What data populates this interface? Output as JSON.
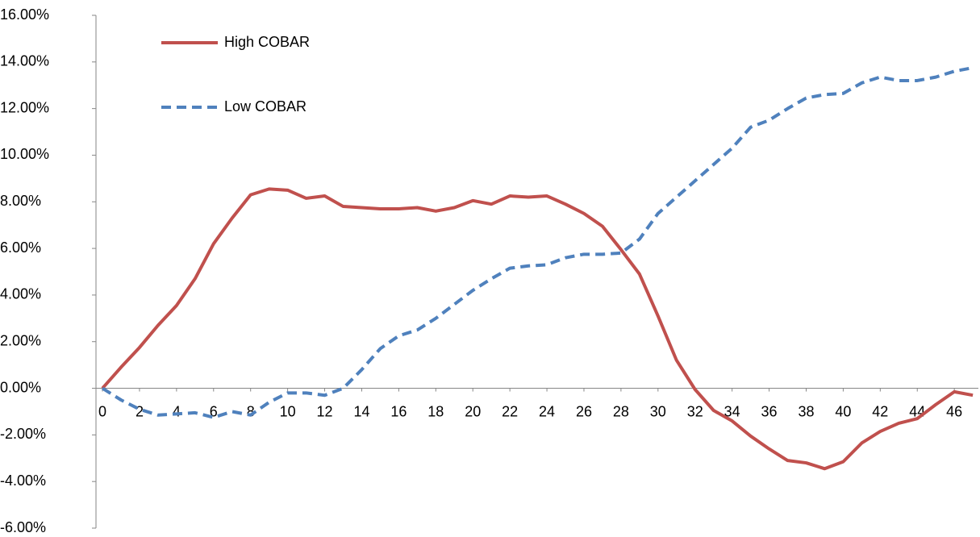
{
  "chart_data": {
    "type": "line",
    "x": [
      0,
      1,
      2,
      3,
      4,
      5,
      6,
      7,
      8,
      9,
      10,
      11,
      12,
      13,
      14,
      15,
      16,
      17,
      18,
      19,
      20,
      21,
      22,
      23,
      24,
      25,
      26,
      27,
      28,
      29,
      30,
      31,
      32,
      33,
      34,
      35,
      36,
      37,
      38,
      39,
      40,
      41,
      42,
      43,
      44,
      45,
      46,
      47
    ],
    "series": [
      {
        "name": "High COBAR",
        "color": "#c0504d",
        "dash": false,
        "values": [
          0,
          0.9,
          1.75,
          2.7,
          3.55,
          4.7,
          6.2,
          7.3,
          8.3,
          8.55,
          8.5,
          8.15,
          8.25,
          7.8,
          7.75,
          7.7,
          7.7,
          7.75,
          7.6,
          7.75,
          8.05,
          7.9,
          8.25,
          8.2,
          8.25,
          7.9,
          7.5,
          6.95,
          5.95,
          4.9,
          3.1,
          1.2,
          -0.05,
          -0.95,
          -1.4,
          -2.05,
          -2.6,
          -3.1,
          -3.2,
          -3.45,
          -3.15,
          -2.35,
          -1.85,
          -1.5,
          -1.3,
          -0.7,
          -0.15,
          -0.3
        ]
      },
      {
        "name": "Low COBAR",
        "color": "#4f81bd",
        "dash": true,
        "values": [
          0,
          -0.5,
          -0.9,
          -1.15,
          -1.1,
          -1.05,
          -1.25,
          -1.0,
          -1.15,
          -0.6,
          -0.2,
          -0.2,
          -0.3,
          0,
          0.8,
          1.7,
          2.25,
          2.5,
          3.0,
          3.6,
          4.2,
          4.7,
          5.15,
          5.25,
          5.3,
          5.6,
          5.75,
          5.75,
          5.8,
          6.4,
          7.5,
          8.2,
          8.9,
          9.6,
          10.3,
          11.2,
          11.5,
          12.0,
          12.45,
          12.6,
          12.65,
          13.1,
          13.35,
          13.2,
          13.2,
          13.35,
          13.6,
          13.75
        ]
      }
    ],
    "xlim": [
      -0.35,
      47.3
    ],
    "xticks": [
      0,
      2,
      4,
      6,
      8,
      10,
      12,
      14,
      16,
      18,
      20,
      22,
      24,
      26,
      28,
      30,
      32,
      34,
      36,
      38,
      40,
      42,
      44,
      46
    ],
    "ylim": [
      -6,
      16
    ],
    "yticks": [
      {
        "value": -6,
        "label": "-6.00%"
      },
      {
        "value": -4,
        "label": "-4.00%"
      },
      {
        "value": -2,
        "label": "-2.00%"
      },
      {
        "value": 0,
        "label": "0.00%"
      },
      {
        "value": 2,
        "label": "2.00%"
      },
      {
        "value": 4,
        "label": "4.00%"
      },
      {
        "value": 6,
        "label": "6.00%"
      },
      {
        "value": 8,
        "label": "8.00%"
      },
      {
        "value": 10,
        "label": "10.00%"
      },
      {
        "value": 12,
        "label": "12.00%"
      },
      {
        "value": 14,
        "label": "14.00%"
      },
      {
        "value": 16,
        "label": "16.00%"
      }
    ],
    "grid": false,
    "legend": "top-left"
  }
}
